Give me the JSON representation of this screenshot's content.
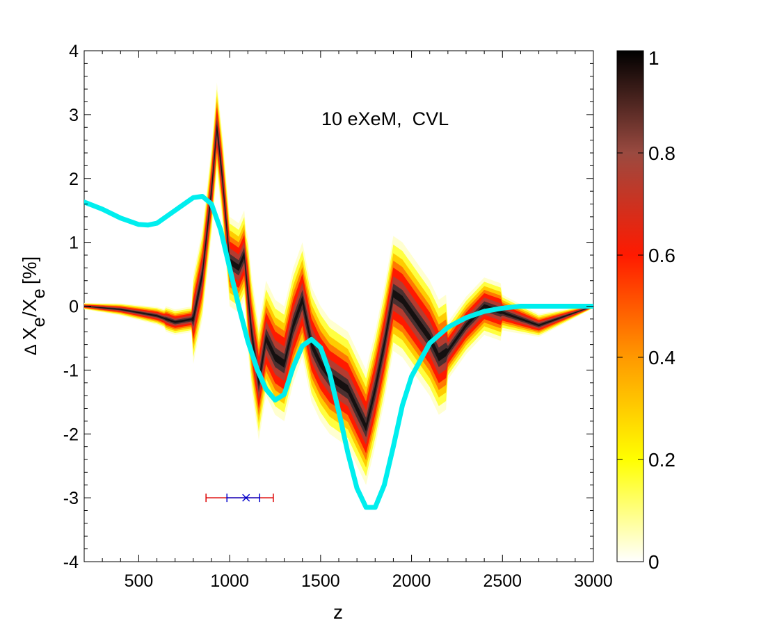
{
  "chart_data": {
    "type": "line",
    "annotation": "10 eXeM,  CVL",
    "xlabel": "z",
    "ylabel": {
      "delta": "Δ",
      "x1": "X",
      "sub1": "e",
      "slash": "/X",
      "sub2": "e",
      "unit": "[%]"
    },
    "xlim": [
      200,
      3000
    ],
    "ylim": [
      -4,
      4
    ],
    "x_ticks": [
      500,
      1000,
      1500,
      2000,
      2500,
      3000
    ],
    "x_tick_labels": [
      "500",
      "1000",
      "1500",
      "2000",
      "2500",
      "3000"
    ],
    "y_ticks": [
      4,
      3,
      2,
      1,
      0,
      -1,
      -2,
      -3,
      -4
    ],
    "y_tick_labels": [
      "4",
      "3",
      "2",
      "1",
      "0",
      "-1",
      "-2",
      "-3",
      "-4"
    ],
    "colorbar": {
      "range": [
        0,
        1
      ],
      "ticks": [
        1,
        0.8,
        0.6,
        0.4,
        0.2,
        0
      ],
      "tick_labels": [
        "1",
        "0.8",
        "0.6",
        "0.4",
        "0.2",
        "0"
      ],
      "colors": [
        "#ffffff",
        "#ffff00",
        "#ff9900",
        "#ff1a00",
        "#b84a3a",
        "#000000"
      ]
    },
    "series": [
      {
        "name": "cyan-curve",
        "color": "#00eeee",
        "x": [
          200,
          300,
          400,
          500,
          550,
          600,
          700,
          800,
          850,
          900,
          950,
          1000,
          1050,
          1100,
          1150,
          1200,
          1250,
          1300,
          1350,
          1400,
          1450,
          1500,
          1550,
          1600,
          1650,
          1700,
          1750,
          1800,
          1850,
          1900,
          1950,
          2000,
          2100,
          2200,
          2300,
          2400,
          2500,
          2600,
          2700,
          2800,
          3000
        ],
        "y": [
          1.63,
          1.52,
          1.38,
          1.28,
          1.27,
          1.3,
          1.5,
          1.7,
          1.72,
          1.6,
          1.2,
          0.6,
          0.0,
          -0.55,
          -0.98,
          -1.3,
          -1.47,
          -1.38,
          -0.95,
          -0.62,
          -0.52,
          -0.65,
          -1.05,
          -1.65,
          -2.3,
          -2.85,
          -3.15,
          -3.15,
          -2.8,
          -2.2,
          -1.55,
          -1.1,
          -0.58,
          -0.33,
          -0.18,
          -0.08,
          -0.03,
          0.0,
          0.0,
          0.0,
          0.0
        ]
      },
      {
        "name": "median-band",
        "color": "#3a2a2a",
        "x": [
          200,
          400,
          600,
          700,
          800,
          850,
          900,
          930,
          960,
          1000,
          1050,
          1080,
          1120,
          1160,
          1200,
          1250,
          1300,
          1350,
          1400,
          1450,
          1500,
          1550,
          1600,
          1650,
          1700,
          1750,
          1800,
          1850,
          1900,
          1950,
          2000,
          2050,
          2100,
          2150,
          2200,
          2300,
          2400,
          2500,
          2600,
          2700,
          2800,
          2900,
          3000
        ],
        "y": [
          0.0,
          -0.05,
          -0.15,
          -0.25,
          -0.2,
          0.5,
          1.8,
          2.8,
          2.0,
          0.7,
          0.6,
          0.8,
          -0.4,
          -1.2,
          -0.5,
          -0.8,
          -0.9,
          -0.3,
          0.1,
          -0.6,
          -0.9,
          -1.1,
          -1.2,
          -1.3,
          -1.6,
          -1.9,
          -1.3,
          -0.6,
          0.2,
          0.1,
          -0.1,
          -0.3,
          -0.5,
          -0.8,
          -0.7,
          -0.3,
          0.0,
          -0.1,
          -0.2,
          -0.3,
          -0.2,
          -0.1,
          0.0
        ]
      }
    ],
    "errorbar": {
      "center": 1090,
      "y": -3,
      "inner": [
        985,
        1165
      ],
      "outer": [
        870,
        1240
      ],
      "inner_color": "#0000cc",
      "outer_color": "#dd0000",
      "marker": "x"
    }
  }
}
